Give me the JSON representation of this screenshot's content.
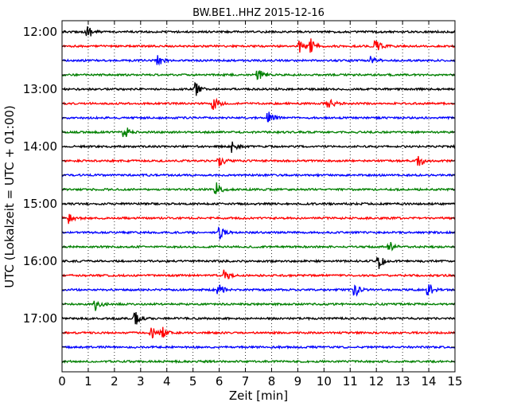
{
  "chart_data": {
    "type": "line",
    "title": "BW.BE1..HHZ 2015-12-16",
    "xlabel": "Zeit  [min]",
    "ylabel": "UTC (Lokalzeit = UTC + 01:00)",
    "xlim": [
      0,
      15
    ],
    "x_ticks": [
      "0",
      "1",
      "2",
      "3",
      "4",
      "5",
      "6",
      "7",
      "8",
      "9",
      "10",
      "11",
      "12",
      "13",
      "14",
      "15"
    ],
    "y_tick_labels": [
      "12:00",
      "13:00",
      "14:00",
      "15:00",
      "16:00",
      "17:00"
    ],
    "minutes_per_trace": 15,
    "grid": "vertical dotted lines at each minute",
    "trace_colors": [
      "#000000",
      "#ff0000",
      "#0000ff",
      "#008000"
    ],
    "series": [
      {
        "start": "12:00",
        "events_min": [
          1.0
        ]
      },
      {
        "start": "12:15",
        "events_min": [
          9.1,
          9.5,
          12.0
        ]
      },
      {
        "start": "12:30",
        "events_min": [
          3.7,
          11.8
        ]
      },
      {
        "start": "12:45",
        "events_min": [
          7.5
        ]
      },
      {
        "start": "13:00",
        "events_min": [
          5.1
        ]
      },
      {
        "start": "13:15",
        "events_min": [
          5.8,
          10.2
        ]
      },
      {
        "start": "13:30",
        "events_min": [
          7.9
        ]
      },
      {
        "start": "13:45",
        "events_min": [
          2.4
        ]
      },
      {
        "start": "14:00",
        "events_min": [
          6.5
        ]
      },
      {
        "start": "14:15",
        "events_min": [
          6.0,
          13.6
        ]
      },
      {
        "start": "14:30",
        "events_min": []
      },
      {
        "start": "14:45",
        "events_min": [
          5.9
        ]
      },
      {
        "start": "15:00",
        "events_min": []
      },
      {
        "start": "15:15",
        "events_min": [
          0.3
        ]
      },
      {
        "start": "15:30",
        "events_min": [
          6.0
        ]
      },
      {
        "start": "15:45",
        "events_min": [
          12.5
        ]
      },
      {
        "start": "16:00",
        "events_min": [
          12.1
        ]
      },
      {
        "start": "16:15",
        "events_min": [
          6.2
        ]
      },
      {
        "start": "16:30",
        "events_min": [
          6.0,
          11.2,
          14.0
        ]
      },
      {
        "start": "16:45",
        "events_min": [
          1.3
        ]
      },
      {
        "start": "17:00",
        "events_min": [
          2.8
        ]
      },
      {
        "start": "17:15",
        "events_min": [
          3.4,
          3.8
        ]
      },
      {
        "start": "17:30",
        "events_min": []
      },
      {
        "start": "17:45",
        "events_min": []
      }
    ]
  }
}
